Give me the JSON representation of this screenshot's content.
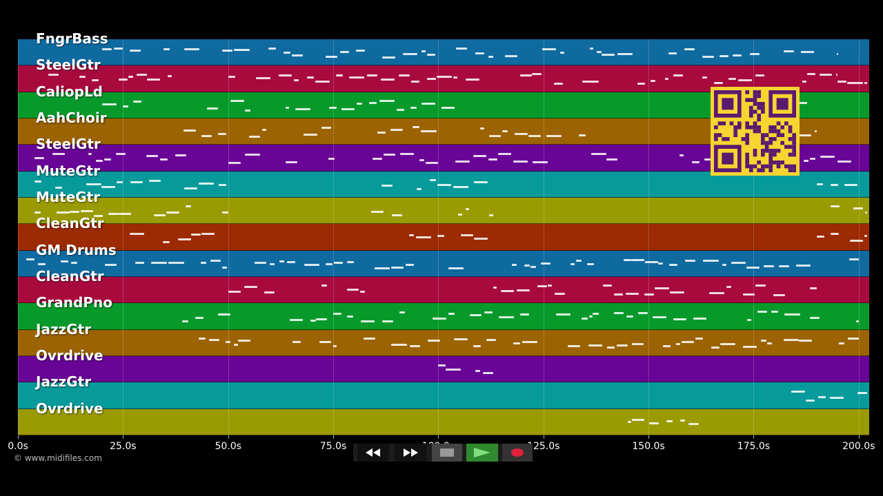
{
  "tracks": [
    {
      "name": "FngrBass",
      "color": "#0f6aa0"
    },
    {
      "name": "SteelGtr",
      "color": "#a80a3e"
    },
    {
      "name": "CaliopLd",
      "color": "#079a2b"
    },
    {
      "name": "AahChoir",
      "color": "#9c6302"
    },
    {
      "name": "SteelGtr",
      "color": "#680496"
    },
    {
      "name": "MuteGtr",
      "color": "#079a9a"
    },
    {
      "name": "MuteGtr",
      "color": "#9a9a02"
    },
    {
      "name": "CleanGtr",
      "color": "#9c2a02"
    },
    {
      "name": "GM Drums",
      "color": "#0f6aa0"
    },
    {
      "name": "CleanGtr",
      "color": "#a80a3e"
    },
    {
      "name": "GrandPno",
      "color": "#079a2b"
    },
    {
      "name": "JazzGtr",
      "color": "#9c6302"
    },
    {
      "name": "Ovrdrive",
      "color": "#680496"
    },
    {
      "name": "JazzGtr",
      "color": "#079a9a"
    },
    {
      "name": "Ovrdrive",
      "color": "#9a9a02"
    }
  ],
  "axis": {
    "ticks": [
      "0.0s",
      "25.0s",
      "50.0s",
      "75.0s",
      "100.0s",
      "125.0s",
      "150.0s",
      "175.0s",
      "200.0s"
    ],
    "tick_values": [
      0,
      25,
      50,
      75,
      100,
      125,
      150,
      175,
      200
    ],
    "max_seconds": 202.5
  },
  "copyright": "© www.midifiles.com",
  "controls": [
    {
      "name": "rewind-button",
      "icon": "rewind-icon"
    },
    {
      "name": "fast-forward-button",
      "icon": "fast-forward-icon"
    },
    {
      "name": "stop-button",
      "icon": "stop-icon"
    },
    {
      "name": "play-button",
      "icon": "play-icon"
    },
    {
      "name": "record-button",
      "icon": "record-icon"
    }
  ],
  "colors": {
    "background": "#000000",
    "qr_background": "#f6d431",
    "qr_foreground": "#5a1a6e",
    "play_active": "#2f8a2f",
    "record": "#e0203a"
  }
}
